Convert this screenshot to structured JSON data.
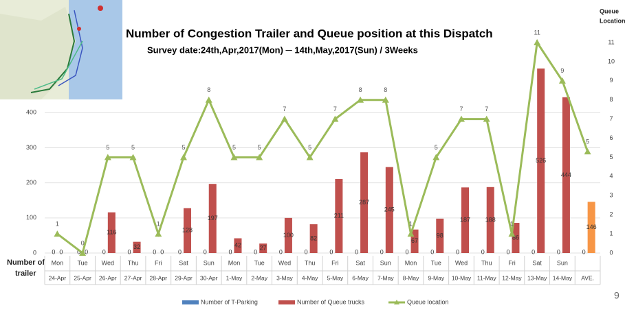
{
  "chart_data": {
    "type": "bar-line",
    "title": "Number of Congestion Trailer and Queue position at this Dispatch",
    "subtitle": "Survey date:24th,Apr,2017(Mon) ─ 14th,May,2017(Sun)  / 3Weeks",
    "y_label": [
      "Number of",
      "trailer"
    ],
    "y2_label": [
      "Queue",
      "Location"
    ],
    "page_number": "9",
    "weekdays": [
      "Mon",
      "Tue",
      "Wed",
      "Thu",
      "Fri",
      "Sat",
      "Sun",
      "Mon",
      "Tue",
      "Wed",
      "Thu",
      "Fri",
      "Sat",
      "Sun",
      "Mon",
      "Tue",
      "Wed",
      "Thu",
      "Fri",
      "Sat",
      "Sun",
      null
    ],
    "categories": [
      "24-Apr",
      "25-Apr",
      "26-Apr",
      "27-Apr",
      "28-Apr",
      "29-Apr",
      "30-Apr",
      "1-May",
      "2-May",
      "3-May",
      "4-May",
      "5-May",
      "6-May",
      "7-May",
      "8-May",
      "9-May",
      "10-May",
      "11-May",
      "12-May",
      "13-May",
      "14-May",
      "AVE."
    ],
    "series": [
      {
        "name": "Number of T-Parking",
        "color": "#4f81bd",
        "kind": "bar",
        "values": [
          0,
          0,
          0,
          0,
          0,
          0,
          0,
          0,
          0,
          0,
          0,
          0,
          0,
          0,
          0,
          0,
          0,
          0,
          0,
          0,
          0,
          0
        ]
      },
      {
        "name": "Number of Queue trucks",
        "color": "#c0504d",
        "last_color": "#f79646",
        "kind": "bar",
        "values": [
          0,
          0,
          116,
          32,
          0,
          128,
          197,
          42,
          27,
          100,
          82,
          211,
          287,
          245,
          67,
          98,
          187,
          188,
          86,
          526,
          444,
          146
        ]
      },
      {
        "name": "Queue location",
        "color": "#9bbb59",
        "kind": "line",
        "axis": "y2",
        "values": [
          1,
          0,
          5,
          5,
          1,
          5,
          8,
          5,
          5,
          7,
          5,
          7,
          8,
          8,
          1,
          5,
          7,
          7,
          1,
          11,
          9,
          5.3
        ],
        "value_labels": [
          "1",
          "0",
          "5",
          "5",
          "1",
          "5",
          "8",
          "5",
          "5",
          "7",
          "5",
          "7",
          "8",
          "8",
          "1",
          "5",
          "7",
          "7",
          "1",
          "11",
          "9",
          "5"
        ]
      }
    ],
    "ylim": [
      0,
      600
    ],
    "yticks": [
      0,
      100,
      200,
      300,
      400
    ],
    "y2lim": [
      0,
      11
    ],
    "y2ticks": [
      0,
      1,
      2,
      3,
      4,
      5,
      6,
      7,
      8,
      9,
      10,
      11
    ],
    "grid": true
  }
}
